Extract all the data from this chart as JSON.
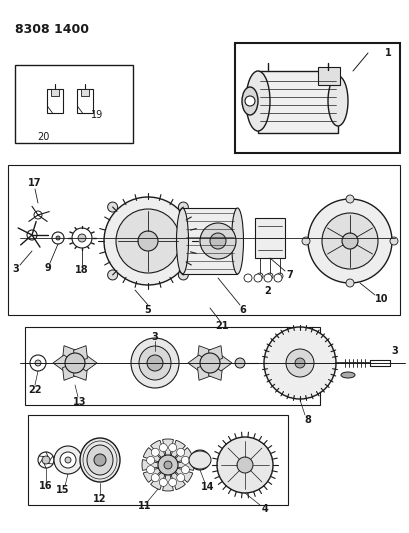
{
  "title": "8308 1400",
  "bg": "#ffffff",
  "lc": "#1a1a1a",
  "figsize": [
    4.1,
    5.33
  ],
  "dpi": 100
}
